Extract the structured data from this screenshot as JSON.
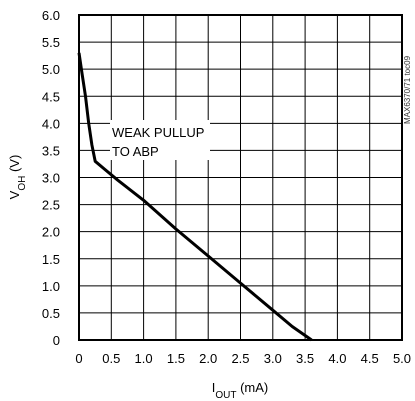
{
  "chart_data": {
    "type": "line",
    "title": "",
    "xlabel": "I",
    "xlabel_sub": "OUT",
    "xlabel_unit": " (mA)",
    "ylabel": "V",
    "ylabel_sub": "OH",
    "ylabel_unit": " (V)",
    "xlim": [
      0,
      5
    ],
    "ylim": [
      0,
      6
    ],
    "x_ticks": [
      "0",
      "0.5",
      "1.0",
      "1.5",
      "2.0",
      "2.5",
      "3.0",
      "3.5",
      "4.0",
      "4.5",
      "5.0"
    ],
    "y_ticks": [
      "0",
      "0.5",
      "1.0",
      "1.5",
      "2.0",
      "2.5",
      "3.0",
      "3.5",
      "4.0",
      "4.5",
      "5.0",
      "5.5",
      "6.0"
    ],
    "grid": true,
    "series": [
      {
        "x": [
          0.0,
          0.05,
          0.1,
          0.15,
          0.2,
          0.25,
          0.4,
          0.6,
          1.0,
          1.5,
          2.0,
          2.5,
          3.0,
          3.3,
          3.6
        ],
        "y": [
          5.3,
          4.9,
          4.5,
          4.0,
          3.6,
          3.3,
          3.15,
          2.95,
          2.58,
          2.05,
          1.55,
          1.05,
          0.55,
          0.25,
          0.0
        ]
      }
    ],
    "annotations": [
      {
        "line1": "WEAK PULLUP",
        "line2": "TO ABP"
      }
    ],
    "side_label": "MAX6370/71 toc09"
  }
}
